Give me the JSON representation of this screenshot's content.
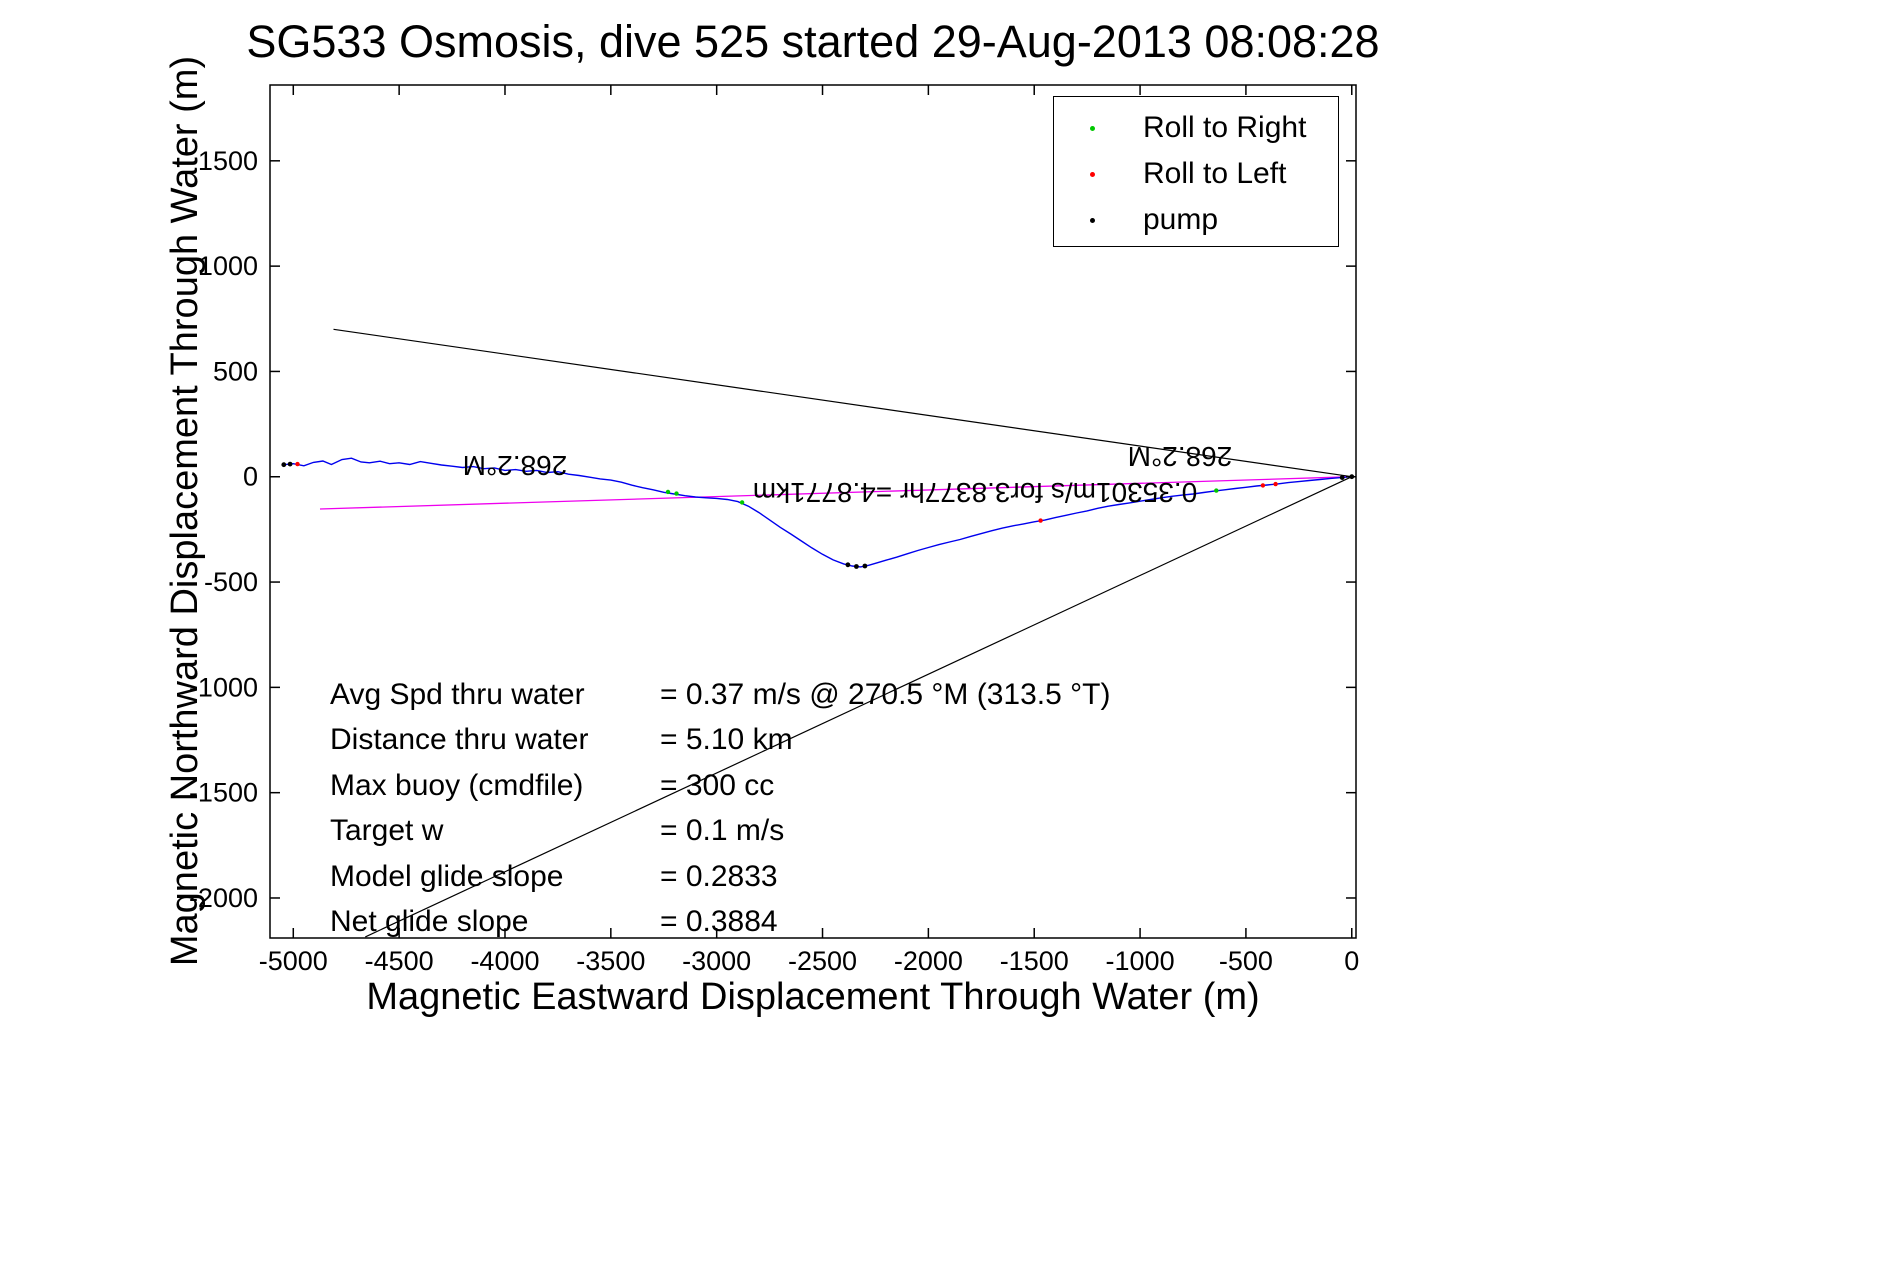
{
  "chart_data": {
    "type": "line",
    "title": "SG533 Osmosis, dive 525 started 29-Aug-2013 08:08:28",
    "xlabel": "Magnetic Eastward Displacement Through Water (m)",
    "ylabel": "Magnetic Northward Displacement Through Water (m)",
    "xlim": [
      -5110,
      20
    ],
    "ylim": [
      -2190,
      1860
    ],
    "xticks": [
      -5000,
      -4500,
      -4000,
      -3500,
      -3000,
      -2500,
      -2000,
      -1500,
      -1000,
      -500,
      0
    ],
    "yticks": [
      -2000,
      -1500,
      -1000,
      -500,
      0,
      500,
      1000,
      1500
    ],
    "grid": false,
    "axis_color": "#000000",
    "legend": {
      "position": "top-right",
      "entries": [
        {
          "label": "Roll to Right",
          "color": "#00c800",
          "icon": "roll-right-dot-icon"
        },
        {
          "label": "Roll to Left",
          "color": "#ff0000",
          "icon": "roll-left-dot-icon"
        },
        {
          "label": "pump",
          "color": "#000000",
          "icon": "pump-dot-icon"
        }
      ]
    },
    "series": [
      {
        "name": "bearing-wedge-upper",
        "type": "line",
        "color": "#000000",
        "width": 1.2,
        "points": [
          [
            0,
            0
          ],
          [
            -4810,
            700
          ]
        ]
      },
      {
        "name": "bearing-wedge-lower",
        "type": "line",
        "color": "#000000",
        "width": 1.2,
        "points": [
          [
            0,
            0
          ],
          [
            -4660,
            -2185
          ]
        ]
      },
      {
        "name": "commanded-course-line",
        "type": "line",
        "color": "#ee00ee",
        "width": 1.3,
        "points": [
          [
            0,
            0
          ],
          [
            -4874,
            -153
          ]
        ]
      },
      {
        "name": "track-through-water",
        "type": "line",
        "color": "#0000ee",
        "width": 1.4,
        "points": [
          [
            -5045,
            57
          ],
          [
            -5000,
            62
          ],
          [
            -4950,
            52
          ],
          [
            -4905,
            68
          ],
          [
            -4860,
            75
          ],
          [
            -4820,
            58
          ],
          [
            -4770,
            82
          ],
          [
            -4725,
            88
          ],
          [
            -4680,
            70
          ],
          [
            -4640,
            66
          ],
          [
            -4590,
            74
          ],
          [
            -4545,
            62
          ],
          [
            -4500,
            66
          ],
          [
            -4450,
            58
          ],
          [
            -4400,
            72
          ],
          [
            -4350,
            64
          ],
          [
            -4300,
            56
          ],
          [
            -4250,
            50
          ],
          [
            -4200,
            44
          ],
          [
            -4150,
            48
          ],
          [
            -4100,
            38
          ],
          [
            -4050,
            42
          ],
          [
            -4000,
            30
          ],
          [
            -3950,
            34
          ],
          [
            -3900,
            26
          ],
          [
            -3850,
            30
          ],
          [
            -3800,
            20
          ],
          [
            -3750,
            24
          ],
          [
            -3700,
            12
          ],
          [
            -3650,
            6
          ],
          [
            -3600,
            -2
          ],
          [
            -3550,
            -10
          ],
          [
            -3500,
            -16
          ],
          [
            -3450,
            -26
          ],
          [
            -3400,
            -40
          ],
          [
            -3350,
            -52
          ],
          [
            -3300,
            -62
          ],
          [
            -3250,
            -74
          ],
          [
            -3200,
            -82
          ],
          [
            -3150,
            -90
          ],
          [
            -3100,
            -96
          ],
          [
            -3050,
            -100
          ],
          [
            -3000,
            -103
          ],
          [
            -2950,
            -108
          ],
          [
            -2900,
            -118
          ],
          [
            -2850,
            -140
          ],
          [
            -2800,
            -170
          ],
          [
            -2750,
            -205
          ],
          [
            -2700,
            -240
          ],
          [
            -2650,
            -272
          ],
          [
            -2600,
            -305
          ],
          [
            -2550,
            -338
          ],
          [
            -2500,
            -368
          ],
          [
            -2450,
            -395
          ],
          [
            -2400,
            -414
          ],
          [
            -2360,
            -424
          ],
          [
            -2320,
            -428
          ],
          [
            -2280,
            -420
          ],
          [
            -2240,
            -408
          ],
          [
            -2200,
            -396
          ],
          [
            -2150,
            -382
          ],
          [
            -2100,
            -366
          ],
          [
            -2050,
            -350
          ],
          [
            -2000,
            -336
          ],
          [
            -1950,
            -322
          ],
          [
            -1900,
            -310
          ],
          [
            -1850,
            -298
          ],
          [
            -1800,
            -283
          ],
          [
            -1750,
            -270
          ],
          [
            -1700,
            -256
          ],
          [
            -1650,
            -244
          ],
          [
            -1600,
            -233
          ],
          [
            -1550,
            -224
          ],
          [
            -1500,
            -214
          ],
          [
            -1450,
            -206
          ],
          [
            -1400,
            -194
          ],
          [
            -1350,
            -183
          ],
          [
            -1300,
            -172
          ],
          [
            -1250,
            -162
          ],
          [
            -1200,
            -150
          ],
          [
            -1150,
            -140
          ],
          [
            -1100,
            -132
          ],
          [
            -1050,
            -124
          ],
          [
            -1000,
            -116
          ],
          [
            -950,
            -108
          ],
          [
            -900,
            -100
          ],
          [
            -850,
            -93
          ],
          [
            -800,
            -87
          ],
          [
            -750,
            -82
          ],
          [
            -700,
            -75
          ],
          [
            -650,
            -68
          ],
          [
            -600,
            -62
          ],
          [
            -550,
            -56
          ],
          [
            -500,
            -50
          ],
          [
            -450,
            -44
          ],
          [
            -400,
            -39
          ],
          [
            -350,
            -34
          ],
          [
            -300,
            -28
          ],
          [
            -250,
            -23
          ],
          [
            -200,
            -18
          ],
          [
            -150,
            -13
          ],
          [
            -100,
            -8
          ],
          [
            -50,
            -4
          ],
          [
            0,
            0
          ]
        ]
      },
      {
        "name": "pump-markers",
        "type": "scatter",
        "color": "#000000",
        "size": 2.4,
        "points": [
          [
            -5045,
            57
          ],
          [
            -5015,
            60
          ],
          [
            -2380,
            -418
          ],
          [
            -2340,
            -426
          ],
          [
            -2300,
            -424
          ],
          [
            -45,
            -4
          ],
          [
            0,
            0
          ]
        ]
      },
      {
        "name": "roll-right-markers",
        "type": "scatter",
        "color": "#00c800",
        "size": 2.2,
        "points": [
          [
            -3230,
            -72
          ],
          [
            -3190,
            -80
          ],
          [
            -2880,
            -122
          ],
          [
            -640,
            -66
          ]
        ]
      },
      {
        "name": "roll-left-markers",
        "type": "scatter",
        "color": "#ff0000",
        "size": 2.2,
        "points": [
          [
            -4980,
            60
          ],
          [
            -1470,
            -208
          ],
          [
            -420,
            -41
          ],
          [
            -360,
            -35
          ]
        ]
      }
    ],
    "annotations": [
      {
        "text": "268.2°M",
        "x": -3953,
        "y": 56,
        "rotation": 180
      },
      {
        "text": "268.2°M",
        "x": -812,
        "y": 100,
        "rotation": 180
      },
      {
        "text": "0.35301m/s for3.8377hr =4.8771km",
        "x": -1780,
        "y": -72,
        "rotation": 180
      }
    ],
    "stats": [
      {
        "label": "Avg Spd thru water",
        "value": "=  0.37 m/s @ 270.5 °M (313.5 °T)"
      },
      {
        "label": "Distance thru water",
        "value": "=  5.10 km"
      },
      {
        "label": "Max buoy (cmdfile)",
        "value": "= 300 cc"
      },
      {
        "label": "Target w",
        "value": "= 0.1 m/s"
      },
      {
        "label": "Model glide slope",
        "value": "= 0.2833"
      },
      {
        "label": "Net glide slope",
        "value": "= 0.3884"
      }
    ]
  }
}
